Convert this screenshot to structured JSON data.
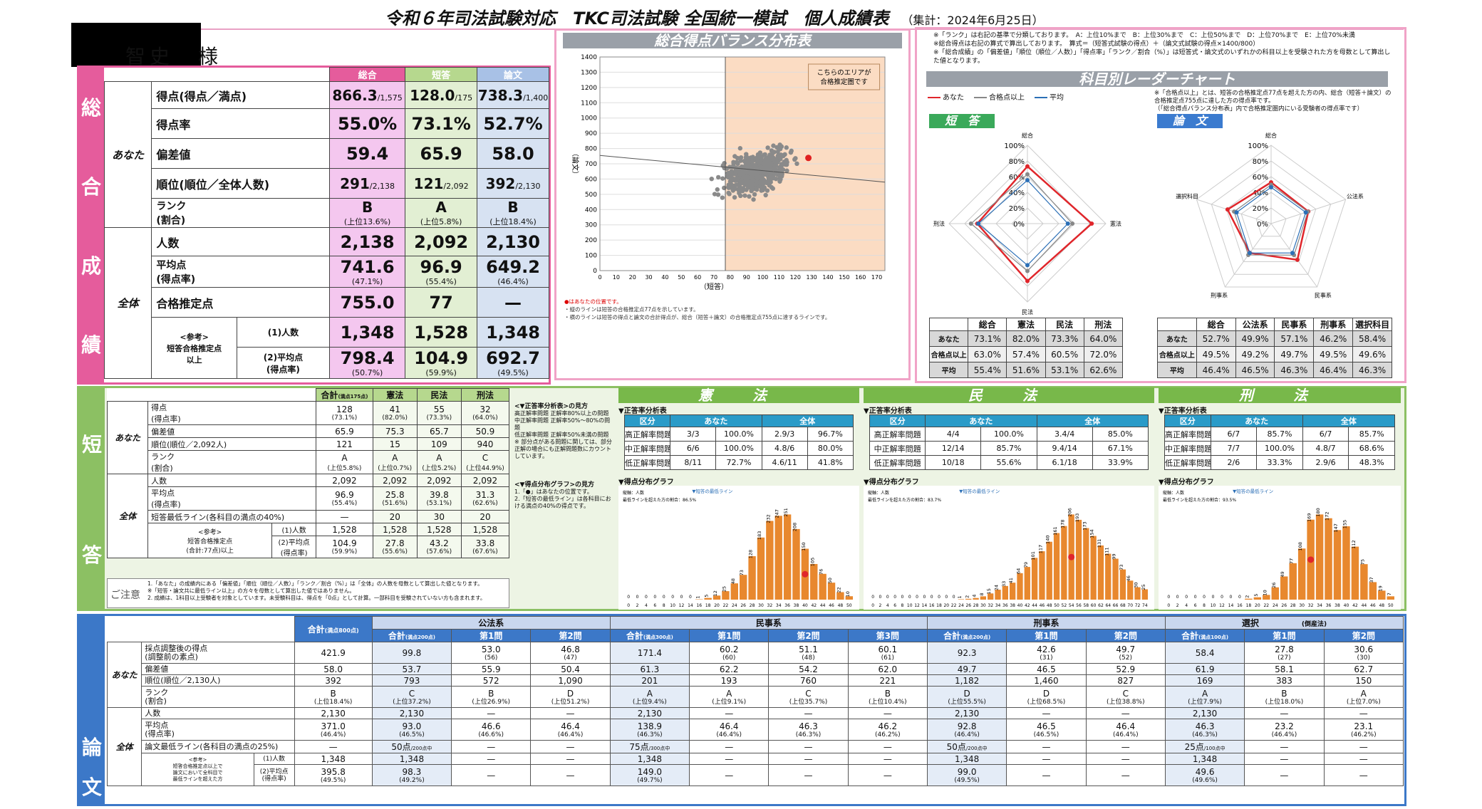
{
  "header": {
    "title": "令和６年司法試験対応　TKC司法試験 全国統一模試　個人成績表",
    "date": "（集計：2024年6月25日）",
    "user_name": "智史　様"
  },
  "overall": {
    "side_label": [
      "総",
      "合",
      "成",
      "績"
    ],
    "col_headers": [
      "総合",
      "短答",
      "論文"
    ],
    "group_you": "あなた",
    "group_all": "全体",
    "rows": [
      {
        "label": "得点(得点／満点)",
        "v": [
          "866.3",
          "128.0",
          "738.3"
        ],
        "sub": [
          "/1,575",
          "/175",
          "/1,400"
        ]
      },
      {
        "label": "得点率",
        "v": [
          "55.0%",
          "73.1%",
          "52.7%"
        ]
      },
      {
        "label": "偏差値",
        "v": [
          "59.4",
          "65.9",
          "58.0"
        ]
      },
      {
        "label": "順位(順位／全体人数)",
        "v": [
          "291",
          "121",
          "392"
        ],
        "sub": [
          "/2,138",
          "/2,092",
          "/2,130"
        ]
      },
      {
        "label": "ランク\n(割合)",
        "v": [
          "B",
          "A",
          "B"
        ],
        "sub": [
          "(上位13.6%)",
          "(上位5.8%)",
          "(上位18.4%)"
        ]
      },
      {
        "label": "人数",
        "v": [
          "2,138",
          "2,092",
          "2,130"
        ]
      },
      {
        "label": "平均点\n(得点率)",
        "v": [
          "741.6",
          "96.9",
          "649.2"
        ],
        "sub": [
          "(47.1%)",
          "(55.4%)",
          "(46.4%)"
        ]
      },
      {
        "label": "合格推定点",
        "v": [
          "755.0",
          "77",
          "—"
        ]
      },
      {
        "label": "(1)人数",
        "v": [
          "1,348",
          "1,528",
          "1,348"
        ]
      },
      {
        "label": "(2)平均点\n(得点率)",
        "v": [
          "798.4",
          "104.9",
          "692.7"
        ],
        "sub": [
          "(50.7%)",
          "(59.9%)",
          "(49.5%)"
        ]
      }
    ],
    "ref_label": "<参考>\n短答合格推定点\n以上"
  },
  "scatter": {
    "title": "総合得点バランス分布表",
    "note": "こちらのエリアが\n合格推定圏です",
    "ylabel": "（論文）",
    "xlabel": "（短答）",
    "footnotes": [
      "●はあなたの位置です。",
      "・縦のラインは短答の合格推定点77点を示しています。",
      "・横のラインは短答の得点と論文の合計得点が、総合（短答＋論文）の合格推定点755点に達するラインです。"
    ]
  },
  "chart_data": [
    {
      "type": "scatter",
      "title": "総合得点バランス分布表",
      "xlabel": "（短答）",
      "ylabel": "（論文）",
      "xlim": [
        0,
        175
      ],
      "ylim": [
        0,
        1400
      ],
      "xticks": [
        0,
        10,
        20,
        30,
        40,
        50,
        60,
        70,
        80,
        90,
        100,
        110,
        120,
        130,
        140,
        150,
        160,
        170
      ],
      "yticks": [
        0,
        100,
        200,
        300,
        400,
        500,
        600,
        700,
        800,
        900,
        1000,
        1100,
        1200,
        1300,
        1400
      ],
      "you": {
        "x": 128.0,
        "y": 738.3
      },
      "vline": 77,
      "pass_line": [
        [
          0,
          755
        ],
        [
          175,
          580
        ]
      ]
    },
    {
      "type": "radar",
      "title": "短 答",
      "axes": [
        "総合",
        "憲法",
        "民法",
        "刑法"
      ],
      "series": [
        {
          "name": "あなた",
          "values": [
            73.1,
            82.0,
            73.3,
            64.0
          ]
        },
        {
          "name": "合格点以上",
          "values": [
            63.0,
            57.4,
            60.5,
            72.0
          ]
        },
        {
          "name": "平均",
          "values": [
            55.4,
            51.6,
            53.1,
            62.6
          ]
        }
      ]
    },
    {
      "type": "radar",
      "title": "論 文",
      "axes": [
        "総合",
        "公法系",
        "民事系",
        "刑事系",
        "選択科目"
      ],
      "series": [
        {
          "name": "あなた",
          "values": [
            52.7,
            49.9,
            57.1,
            46.2,
            58.4
          ]
        },
        {
          "name": "合格点以上",
          "values": [
            49.5,
            49.2,
            49.7,
            49.5,
            49.6
          ]
        },
        {
          "name": "平均",
          "values": [
            46.4,
            46.5,
            46.3,
            46.4,
            46.3
          ]
        }
      ]
    },
    {
      "type": "bar",
      "title": "憲法 得点分布グラフ",
      "categories": [
        "0",
        "2",
        "4",
        "6",
        "8",
        "10",
        "12",
        "14",
        "16",
        "18",
        "20",
        "22",
        "24",
        "26",
        "28",
        "30",
        "32",
        "34",
        "36",
        "38",
        "40",
        "42",
        "44",
        "46",
        "48",
        "50"
      ],
      "values": [
        0,
        0,
        0,
        0,
        0,
        0,
        0,
        0,
        1,
        5,
        12,
        25,
        48,
        73,
        128,
        183,
        232,
        247,
        251,
        208,
        150,
        105,
        76,
        50,
        22,
        10
      ],
      "you_index": 20
    },
    {
      "type": "bar",
      "title": "民法 得点分布グラフ",
      "categories": [
        "0",
        "2",
        "4",
        "6",
        "8",
        "10",
        "12",
        "14",
        "16",
        "18",
        "20",
        "22",
        "24",
        "26",
        "28",
        "30",
        "32",
        "34",
        "36",
        "38",
        "40",
        "42",
        "44",
        "46",
        "48",
        "50",
        "52",
        "54",
        "56",
        "58",
        "60",
        "62",
        "64",
        "66",
        "68",
        "70",
        "72",
        "74"
      ],
      "values": [
        0,
        0,
        0,
        0,
        0,
        0,
        0,
        0,
        0,
        0,
        0,
        0,
        1,
        2,
        4,
        8,
        15,
        24,
        33,
        41,
        64,
        79,
        101,
        117,
        140,
        161,
        178,
        206,
        193,
        173,
        154,
        131,
        111,
        99,
        73,
        46,
        30,
        25
      ],
      "you_index": 27
    },
    {
      "type": "bar",
      "title": "刑法 得点分布グラフ",
      "categories": [
        "0",
        "2",
        "4",
        "6",
        "8",
        "10",
        "12",
        "14",
        "16",
        "18",
        "20",
        "22",
        "24",
        "26",
        "28",
        "30",
        "32",
        "34",
        "36",
        "38",
        "40",
        "42",
        "44",
        "46",
        "48",
        "50"
      ],
      "values": [
        0,
        0,
        0,
        0,
        0,
        0,
        0,
        0,
        0,
        2,
        5,
        10,
        26,
        49,
        77,
        108,
        169,
        180,
        172,
        147,
        155,
        112,
        75,
        37,
        19,
        7
      ],
      "you_index": 16
    }
  ],
  "radar": {
    "section_title": "科目別レーダーチャート",
    "legend": [
      "あなた",
      "合格点以上",
      "平均"
    ],
    "tanto_label": "短　答",
    "ronbun_label": "論　文",
    "notes": [
      "※「合格点以上」とは、短答の合格推定点77点を超えた方の内、総合（短答＋論文）の合格推定点755点に達した方の得点率です。",
      "（「総合得点バランス分布表」内で合格推定圏内にいる受験者の得点率です）"
    ],
    "ticks": [
      "100%",
      "80%",
      "60%",
      "40%",
      "20%",
      "0%"
    ],
    "tanto_table": {
      "head": [
        "",
        "総合",
        "憲法",
        "民法",
        "刑法"
      ],
      "rows": [
        [
          "あなた",
          "73.1%",
          "82.0%",
          "73.3%",
          "64.0%"
        ],
        [
          "合格点以上",
          "63.0%",
          "57.4%",
          "60.5%",
          "72.0%"
        ],
        [
          "平均",
          "55.4%",
          "51.6%",
          "53.1%",
          "62.6%"
        ]
      ]
    },
    "ronbun_table": {
      "head": [
        "",
        "総合",
        "公法系",
        "民事系",
        "刑事系",
        "選択科目"
      ],
      "rows": [
        [
          "あなた",
          "52.7%",
          "49.9%",
          "57.1%",
          "46.2%",
          "58.4%"
        ],
        [
          "合格点以上",
          "49.5%",
          "49.2%",
          "49.7%",
          "49.5%",
          "49.6%"
        ],
        [
          "平均",
          "46.4%",
          "46.5%",
          "46.3%",
          "46.4%",
          "46.3%"
        ]
      ]
    }
  },
  "top_notes": [
    "※「ランク」は右記の基準で分類しております。　A：上位10%まで　B：上位30%まで　C：上位50%まで　D：上位70%まで　E：上位70%未満",
    "※総合得点は右記の算式で算出しております。　算式＝（短答式試験の得点）＋（論文式試験の得点×1400/800）",
    "※「総合成績」の「偏差値」「順位（順位／人数）」「得点率」「ランク／割合（%）」は短答式・論文式のいずれかの科目以上を受験された方を母数として算出した値となります。"
  ],
  "tanto": {
    "side_label": [
      "短",
      "答"
    ],
    "col_headers": [
      "合計",
      "憲法",
      "民法",
      "刑法"
    ],
    "col_sub": "(満点175点)",
    "rows": [
      {
        "label": "得点\n(得点率)",
        "v": [
          "128",
          "41",
          "55",
          "32"
        ],
        "sub": [
          "(73.1%)",
          "(82.0%)",
          "(73.3%)",
          "(64.0%)"
        ]
      },
      {
        "label": "偏差値",
        "v": [
          "65.9",
          "75.3",
          "65.7",
          "50.9"
        ]
      },
      {
        "label": "順位(順位／2,092人)",
        "v": [
          "121",
          "15",
          "109",
          "940"
        ]
      },
      {
        "label": "ランク\n(割合)",
        "v": [
          "A",
          "A",
          "A",
          "C"
        ],
        "sub": [
          "(上位5.8%)",
          "(上位0.7%)",
          "(上位5.2%)",
          "(上位44.9%)"
        ]
      },
      {
        "label": "人数",
        "v": [
          "2,092",
          "2,092",
          "2,092",
          "2,092"
        ]
      },
      {
        "label": "平均点\n(得点率)",
        "v": [
          "96.9",
          "25.8",
          "39.8",
          "31.3"
        ],
        "sub": [
          "(55.4%)",
          "(51.6%)",
          "(53.1%)",
          "(62.6%)"
        ]
      },
      {
        "label": "短答最低ライン(各科目の満点の40%)",
        "v": [
          "—",
          "20",
          "30",
          "20"
        ]
      },
      {
        "label": "(1)人数",
        "v": [
          "1,528",
          "1,528",
          "1,528",
          "1,528"
        ]
      },
      {
        "label": "(2)平均点\n(得点率)",
        "v": [
          "104.9",
          "27.8",
          "43.2",
          "33.8"
        ],
        "sub": [
          "(59.9%)",
          "(55.6%)",
          "(57.6%)",
          "(67.6%)"
        ]
      }
    ],
    "ref_label": "<参考>\n短答合格推定点\n(合計:77点)以上",
    "notice_label": "ご注意",
    "notice": [
      "1.「あなた」の成績内にある「偏差値」「順位（順位／人数）」「ランク／割合（%）」は「全体」の人数を母数として算出した値となります。",
      "※「短答・論文共に最低ライン以上」の方々を母数として算出した値ではありません。",
      "2. 成績は、1科目以上受験者を対象としています。未受験科目は、得点を「0点」として計算。一部科目を受験されていない方も含まれます。"
    ],
    "guide_title1": "<▼正答率分析表>の見方",
    "guide1": "高正解率問題 正解率80%以上の問題\n中正解率問題 正解率50%〜80%の問題\n低正解率問題 正解率50%未満の問題\n※ 部分点がある問題に関しては、部分正解の場合にも正解問題数にカウントしています。",
    "guide_title2": "<▼得点分布グラフ>の見方",
    "guide2": "1.「●」はあなたの位置です。\n2.「短答の最低ライン」は各科目における満点の40%の得点です。",
    "subjects": [
      {
        "name": "憲　法",
        "table_title": "▼正答率分析表",
        "rows": [
          [
            "高正解率問題",
            "3/3",
            "100.0%",
            "2.9/3",
            "96.7%"
          ],
          [
            "中正解率問題",
            "6/6",
            "100.0%",
            "4.8/6",
            "80.0%"
          ],
          [
            "低正解率問題",
            "8/11",
            "72.7%",
            "4.6/11",
            "41.8%"
          ]
        ],
        "graph_title": "▼得点分布グラフ",
        "graph_line_label": "▼短答の最低ライン",
        "graph_legend": "縦軸：人数\n最低ラインを超えた方の割合：86.5%"
      },
      {
        "name": "民　法",
        "table_title": "▼正答率分析表",
        "rows": [
          [
            "高正解率問題",
            "4/4",
            "100.0%",
            "3.4/4",
            "85.0%"
          ],
          [
            "中正解率問題",
            "12/14",
            "85.7%",
            "9.4/14",
            "67.1%"
          ],
          [
            "低正解率問題",
            "10/18",
            "55.6%",
            "6.1/18",
            "33.9%"
          ]
        ],
        "graph_title": "▼得点分布グラフ",
        "graph_line_label": "▼短答の最低ライン",
        "graph_legend": "縦軸：人数\n最低ラインを超えた方の割合：83.7%"
      },
      {
        "name": "刑　法",
        "table_title": "▼正答率分析表",
        "rows": [
          [
            "高正解率問題",
            "6/7",
            "85.7%",
            "6/7",
            "85.7%"
          ],
          [
            "中正解率問題",
            "7/7",
            "100.0%",
            "4.8/7",
            "68.6%"
          ],
          [
            "低正解率問題",
            "2/6",
            "33.3%",
            "2.9/6",
            "48.3%"
          ]
        ],
        "graph_title": "▼得点分布グラフ",
        "graph_line_label": "▼短答の最低ライン",
        "graph_legend": "縦軸：人数\n最低ラインを超えた方の割合：93.5%"
      }
    ],
    "table_head": [
      "区分",
      "あなた",
      "全体"
    ]
  },
  "ronbun": {
    "side_label": [
      "論",
      "文"
    ],
    "groups": [
      "公法系",
      "民事系",
      "刑事系",
      "選択"
    ],
    "select_sub": "(倒産法)",
    "total": "合計",
    "total_sub": "(満点800点)",
    "cols": [
      {
        "h": "合計",
        "s": "(満点200点)"
      },
      {
        "h": "第1問",
        "s": ""
      },
      {
        "h": "第2問",
        "s": ""
      },
      {
        "h": "合計",
        "s": "(満点300点)"
      },
      {
        "h": "第1問",
        "s": ""
      },
      {
        "h": "第2問",
        "s": ""
      },
      {
        "h": "第3問",
        "s": ""
      },
      {
        "h": "合計",
        "s": "(満点200点)"
      },
      {
        "h": "第1問",
        "s": ""
      },
      {
        "h": "第2問",
        "s": ""
      },
      {
        "h": "合計",
        "s": "(満点100点)"
      },
      {
        "h": "第1問",
        "s": ""
      },
      {
        "h": "第2問",
        "s": ""
      }
    ],
    "rows": [
      {
        "label": "採点調整後の得点\n(調整前の素点)",
        "v": [
          "421.9",
          "99.8",
          "53.0",
          "46.8",
          "171.4",
          "60.2",
          "51.1",
          "60.1",
          "92.3",
          "42.6",
          "49.7",
          "58.4",
          "27.8",
          "30.6"
        ],
        "sub": [
          "",
          "",
          "(56)",
          "(47)",
          "",
          "(60)",
          "(48)",
          "(61)",
          "",
          "(31)",
          "(52)",
          "",
          "(27)",
          "(30)"
        ]
      },
      {
        "label": "偏差値",
        "v": [
          "58.0",
          "53.7",
          "55.9",
          "50.4",
          "61.3",
          "62.2",
          "54.2",
          "62.0",
          "49.7",
          "46.5",
          "52.9",
          "61.9",
          "58.1",
          "62.7"
        ]
      },
      {
        "label": "順位(順位／2,130人)",
        "v": [
          "392",
          "793",
          "572",
          "1,090",
          "201",
          "193",
          "760",
          "221",
          "1,182",
          "1,460",
          "827",
          "169",
          "383",
          "150"
        ]
      },
      {
        "label": "ランク\n(割合)",
        "v": [
          "B",
          "C",
          "B",
          "D",
          "A",
          "A",
          "C",
          "B",
          "D",
          "D",
          "C",
          "A",
          "B",
          "A"
        ],
        "sub": [
          "(上位18.4%)",
          "(上位37.2%)",
          "(上位26.9%)",
          "(上位51.2%)",
          "(上位9.4%)",
          "(上位9.1%)",
          "(上位35.7%)",
          "(上位10.4%)",
          "(上位55.5%)",
          "(上位68.5%)",
          "(上位38.8%)",
          "(上位7.9%)",
          "(上位18.0%)",
          "(上位7.0%)"
        ]
      },
      {
        "label": "人数",
        "v": [
          "2,130",
          "2,130",
          "—",
          "—",
          "2,130",
          "—",
          "—",
          "—",
          "2,130",
          "—",
          "—",
          "2,130",
          "—",
          "—"
        ]
      },
      {
        "label": "平均点\n(得点率)",
        "v": [
          "371.0",
          "93.0",
          "46.6",
          "46.4",
          "138.9",
          "46.4",
          "46.3",
          "46.2",
          "92.8",
          "46.5",
          "46.4",
          "46.3",
          "23.2",
          "23.1"
        ],
        "sub": [
          "(46.4%)",
          "(46.5%)",
          "(46.6%)",
          "(46.4%)",
          "(46.3%)",
          "(46.4%)",
          "(46.3%)",
          "(46.2%)",
          "(46.4%)",
          "(46.5%)",
          "(46.4%)",
          "(46.3%)",
          "(46.4%)",
          "(46.2%)"
        ]
      },
      {
        "label": "論文最低ライン(各科目の満点の25%)",
        "v": [
          "—",
          "50点",
          "—",
          "—",
          "75点",
          "—",
          "—",
          "—",
          "50点",
          "—",
          "—",
          "25点",
          "—",
          "—"
        ],
        "sub": [
          "",
          "/200点中",
          "",
          "",
          "/300点中",
          "",
          "",
          "",
          "/200点中",
          "",
          "",
          "/100点中",
          "",
          ""
        ]
      },
      {
        "label": "(1)人数",
        "v": [
          "1,348",
          "1,348",
          "—",
          "—",
          "1,348",
          "—",
          "—",
          "—",
          "1,348",
          "—",
          "—",
          "1,348",
          "—",
          "—"
        ]
      },
      {
        "label": "(2)平均点\n(得点率)",
        "v": [
          "395.8",
          "98.3",
          "—",
          "—",
          "149.0",
          "—",
          "—",
          "—",
          "99.0",
          "—",
          "—",
          "49.6",
          "—",
          "—"
        ],
        "sub": [
          "(49.5%)",
          "(49.2%)",
          "",
          "",
          "(49.7%)",
          "",
          "",
          "",
          "(49.5%)",
          "",
          "",
          "(49.6%)",
          "",
          ""
        ]
      }
    ],
    "ref_label": "<参考>\n短答合格推定点以上で\n論文において全科目で\n最低ラインを超えた方"
  }
}
